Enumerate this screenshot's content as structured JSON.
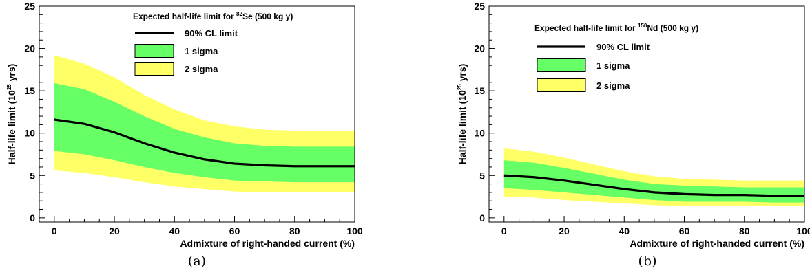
{
  "chart_data": [
    {
      "id": "a",
      "type": "line",
      "caption": "(a)",
      "title_pre": "Expected half-life limit for ",
      "title_sup": "82",
      "title_post": "Se (500 kg y)",
      "xlabel": "Admixture of right-handed current (%)",
      "ylabel_pre": "Half-life limit (10",
      "ylabel_sup": "25",
      "ylabel_post": " yrs)",
      "xlim": [
        -5,
        100
      ],
      "ylim": [
        -0.5,
        25
      ],
      "xticks": [
        0,
        20,
        40,
        60,
        80,
        100
      ],
      "yticks": [
        0,
        5,
        10,
        15,
        20,
        25
      ],
      "legend": [
        {
          "label": "90% CL limit",
          "kind": "line",
          "color": "#000000"
        },
        {
          "label": "1 sigma",
          "kind": "box",
          "color": "#66ff66"
        },
        {
          "label": "2 sigma",
          "kind": "box",
          "color": "#ffff66"
        }
      ],
      "x": [
        0,
        10,
        20,
        30,
        40,
        50,
        60,
        70,
        80,
        90,
        100
      ],
      "limit": [
        11.6,
        11.1,
        10.1,
        8.8,
        7.7,
        6.9,
        6.4,
        6.2,
        6.1,
        6.1,
        6.1
      ],
      "sigma1_low": [
        7.9,
        7.5,
        6.8,
        6.0,
        5.3,
        4.8,
        4.4,
        4.3,
        4.2,
        4.2,
        4.2
      ],
      "sigma1_high": [
        15.9,
        15.2,
        13.7,
        12.0,
        10.5,
        9.5,
        8.8,
        8.5,
        8.4,
        8.4,
        8.4
      ],
      "sigma2_low": [
        5.6,
        5.3,
        4.8,
        4.2,
        3.7,
        3.4,
        3.1,
        3.0,
        3.0,
        3.0,
        3.0
      ],
      "sigma2_high": [
        19.2,
        18.2,
        16.6,
        14.5,
        12.8,
        11.5,
        10.8,
        10.4,
        10.3,
        10.3,
        10.3
      ]
    },
    {
      "id": "b",
      "type": "line",
      "caption": "(b)",
      "title_pre": "Expected half-life limit for ",
      "title_sup": "150",
      "title_post": "Nd (500 kg y)",
      "xlabel": "Admixture of right-handed current (%)",
      "ylabel_pre": "Half-life limit (10",
      "ylabel_sup": "25",
      "ylabel_post": " yrs)",
      "xlim": [
        -5,
        100
      ],
      "ylim": [
        -0.5,
        25
      ],
      "xticks": [
        0,
        20,
        40,
        60,
        80,
        100
      ],
      "yticks": [
        0,
        5,
        10,
        15,
        20,
        25
      ],
      "legend": [
        {
          "label": "90% CL limit",
          "kind": "line",
          "color": "#000000"
        },
        {
          "label": "1 sigma",
          "kind": "box",
          "color": "#66ff66"
        },
        {
          "label": "2 sigma",
          "kind": "box",
          "color": "#ffff66"
        }
      ],
      "x": [
        0,
        10,
        20,
        30,
        40,
        50,
        60,
        70,
        80,
        90,
        100
      ],
      "limit": [
        5.0,
        4.8,
        4.4,
        3.9,
        3.4,
        3.0,
        2.8,
        2.7,
        2.7,
        2.6,
        2.6
      ],
      "sigma1_low": [
        3.5,
        3.3,
        3.0,
        2.7,
        2.4,
        2.1,
        1.9,
        1.9,
        1.9,
        1.8,
        1.8
      ],
      "sigma1_high": [
        6.8,
        6.5,
        5.9,
        5.2,
        4.5,
        4.0,
        3.8,
        3.7,
        3.6,
        3.6,
        3.6
      ],
      "sigma2_low": [
        2.5,
        2.4,
        2.1,
        1.9,
        1.7,
        1.5,
        1.4,
        1.4,
        1.4,
        1.4,
        1.4
      ],
      "sigma2_high": [
        8.2,
        7.8,
        7.1,
        6.3,
        5.5,
        4.9,
        4.6,
        4.5,
        4.4,
        4.4,
        4.4
      ]
    }
  ]
}
